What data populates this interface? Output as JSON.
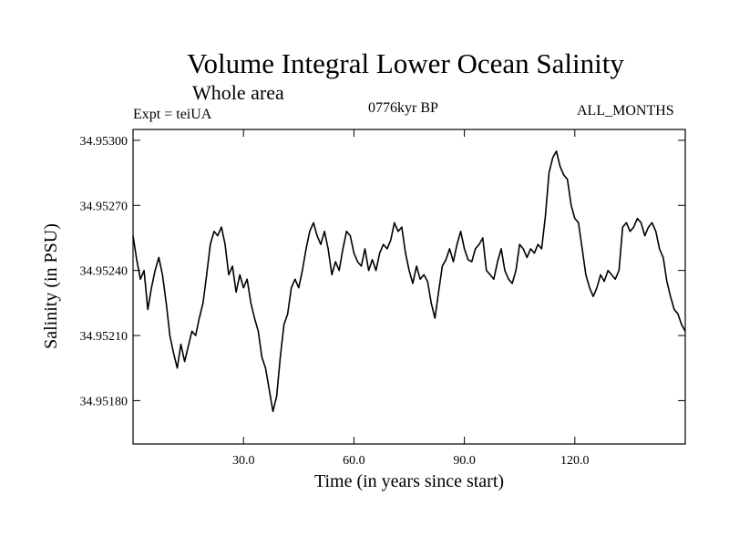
{
  "header": {
    "title": "Volume Integral Lower Ocean Salinity",
    "subtitle": "Whole area",
    "experiment": "Expt = teiUA",
    "period": "0776kyr BP",
    "months": "ALL_MONTHS"
  },
  "chart_data": {
    "type": "line",
    "title": "Volume Integral Lower Ocean Salinity",
    "xlabel": "Time (in years since start)",
    "ylabel": "Salinity (in PSU)",
    "xlim": [
      0,
      150
    ],
    "ylim": [
      34.9516,
      34.95305
    ],
    "xticks": [
      30,
      60,
      90,
      120
    ],
    "xtick_labels": [
      "30.0",
      "60.0",
      "90.0",
      "120.0"
    ],
    "yticks": [
      34.9518,
      34.9521,
      34.9524,
      34.9527,
      34.953
    ],
    "ytick_labels": [
      "34.95180",
      "34.95210",
      "34.95240",
      "34.95270",
      "34.95300"
    ],
    "grid": false,
    "series": [
      {
        "name": "Salinity",
        "x": [
          0,
          1,
          2,
          3,
          4,
          5,
          6,
          7,
          8,
          9,
          10,
          11,
          12,
          13,
          14,
          15,
          16,
          17,
          18,
          19,
          20,
          21,
          22,
          23,
          24,
          25,
          26,
          27,
          28,
          29,
          30,
          31,
          32,
          33,
          34,
          35,
          36,
          37,
          38,
          39,
          40,
          41,
          42,
          43,
          44,
          45,
          46,
          47,
          48,
          49,
          50,
          51,
          52,
          53,
          54,
          55,
          56,
          57,
          58,
          59,
          60,
          61,
          62,
          63,
          64,
          65,
          66,
          67,
          68,
          69,
          70,
          71,
          72,
          73,
          74,
          75,
          76,
          77,
          78,
          79,
          80,
          81,
          82,
          83,
          84,
          85,
          86,
          87,
          88,
          89,
          90,
          91,
          92,
          93,
          94,
          95,
          96,
          97,
          98,
          99,
          100,
          101,
          102,
          103,
          104,
          105,
          106,
          107,
          108,
          109,
          110,
          111,
          112,
          113,
          114,
          115,
          116,
          117,
          118,
          119,
          120,
          121,
          122,
          123,
          124,
          125,
          126,
          127,
          128,
          129,
          130,
          131,
          132,
          133,
          134,
          135,
          136,
          137,
          138,
          139,
          140,
          141,
          142,
          143,
          144,
          145,
          146,
          147,
          148,
          149,
          150
        ],
        "values": [
          34.95256,
          34.95245,
          34.95236,
          34.9524,
          34.95222,
          34.95232,
          34.9524,
          34.95246,
          34.95238,
          34.95225,
          34.9521,
          34.95202,
          34.95195,
          34.95206,
          34.95198,
          34.95205,
          34.95212,
          34.9521,
          34.95218,
          34.95225,
          34.95238,
          34.95252,
          34.95258,
          34.95256,
          34.9526,
          34.95252,
          34.95238,
          34.95242,
          34.9523,
          34.95238,
          34.95232,
          34.95236,
          34.95225,
          34.95218,
          34.95212,
          34.952,
          34.95195,
          34.95185,
          34.95175,
          34.95182,
          34.952,
          34.95215,
          34.9522,
          34.95232,
          34.95236,
          34.95232,
          34.9524,
          34.9525,
          34.95258,
          34.95262,
          34.95256,
          34.95252,
          34.95258,
          34.9525,
          34.95238,
          34.95244,
          34.9524,
          34.9525,
          34.95258,
          34.95256,
          34.95248,
          34.95244,
          34.95242,
          34.9525,
          34.9524,
          34.95245,
          34.9524,
          34.95248,
          34.95252,
          34.9525,
          34.95254,
          34.95262,
          34.95258,
          34.9526,
          34.95248,
          34.9524,
          34.95234,
          34.95242,
          34.95236,
          34.95238,
          34.95235,
          34.95225,
          34.95218,
          34.9523,
          34.95242,
          34.95245,
          34.9525,
          34.95244,
          34.95252,
          34.95258,
          34.9525,
          34.95245,
          34.95244,
          34.9525,
          34.95252,
          34.95255,
          34.9524,
          34.95238,
          34.95236,
          34.95244,
          34.9525,
          34.9524,
          34.95236,
          34.95234,
          34.9524,
          34.95252,
          34.9525,
          34.95246,
          34.9525,
          34.95248,
          34.95252,
          34.9525,
          34.95265,
          34.95285,
          34.95292,
          34.95295,
          34.95288,
          34.95284,
          34.95282,
          34.9527,
          34.95264,
          34.95262,
          34.9525,
          34.95238,
          34.95232,
          34.95228,
          34.95232,
          34.95238,
          34.95235,
          34.9524,
          34.95238,
          34.95236,
          34.9524,
          34.9526,
          34.95262,
          34.95258,
          34.9526,
          34.95264,
          34.95262,
          34.95256,
          34.9526,
          34.95262,
          34.95258,
          34.9525,
          34.95246,
          34.95235,
          34.95228,
          34.95222,
          34.9522,
          34.95215,
          34.95212
        ]
      }
    ]
  }
}
